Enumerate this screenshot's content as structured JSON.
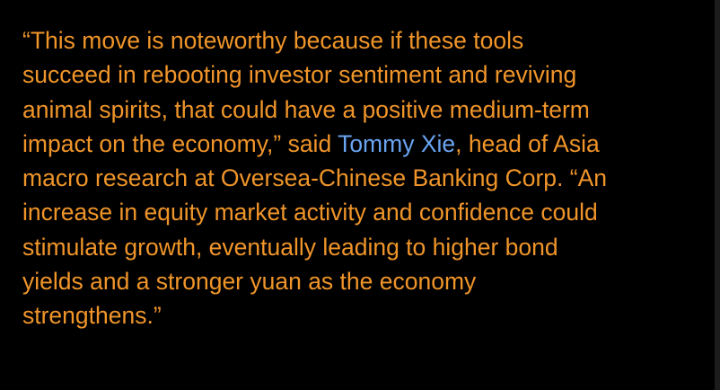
{
  "article": {
    "paragraph": {
      "lines": [
        [
          "“This move is noteworthy because if these tools"
        ],
        [
          "succeed in rebooting investor sentiment and reviving"
        ],
        [
          "animal spirits, that could have a positive medium-term"
        ],
        [
          "impact on the economy,” said ",
          "Tommy Xie",
          ", head of Asia"
        ],
        [
          "macro research at Oversea-Chinese Banking Corp. “An"
        ],
        [
          "increase in equity market activity and confidence could"
        ],
        [
          "stimulate growth, eventually leading to higher bond"
        ],
        [
          "yields and a stronger yuan as the economy"
        ],
        [
          "strengthens.”"
        ]
      ],
      "link": {
        "line": 3,
        "part": 1
      }
    }
  }
}
